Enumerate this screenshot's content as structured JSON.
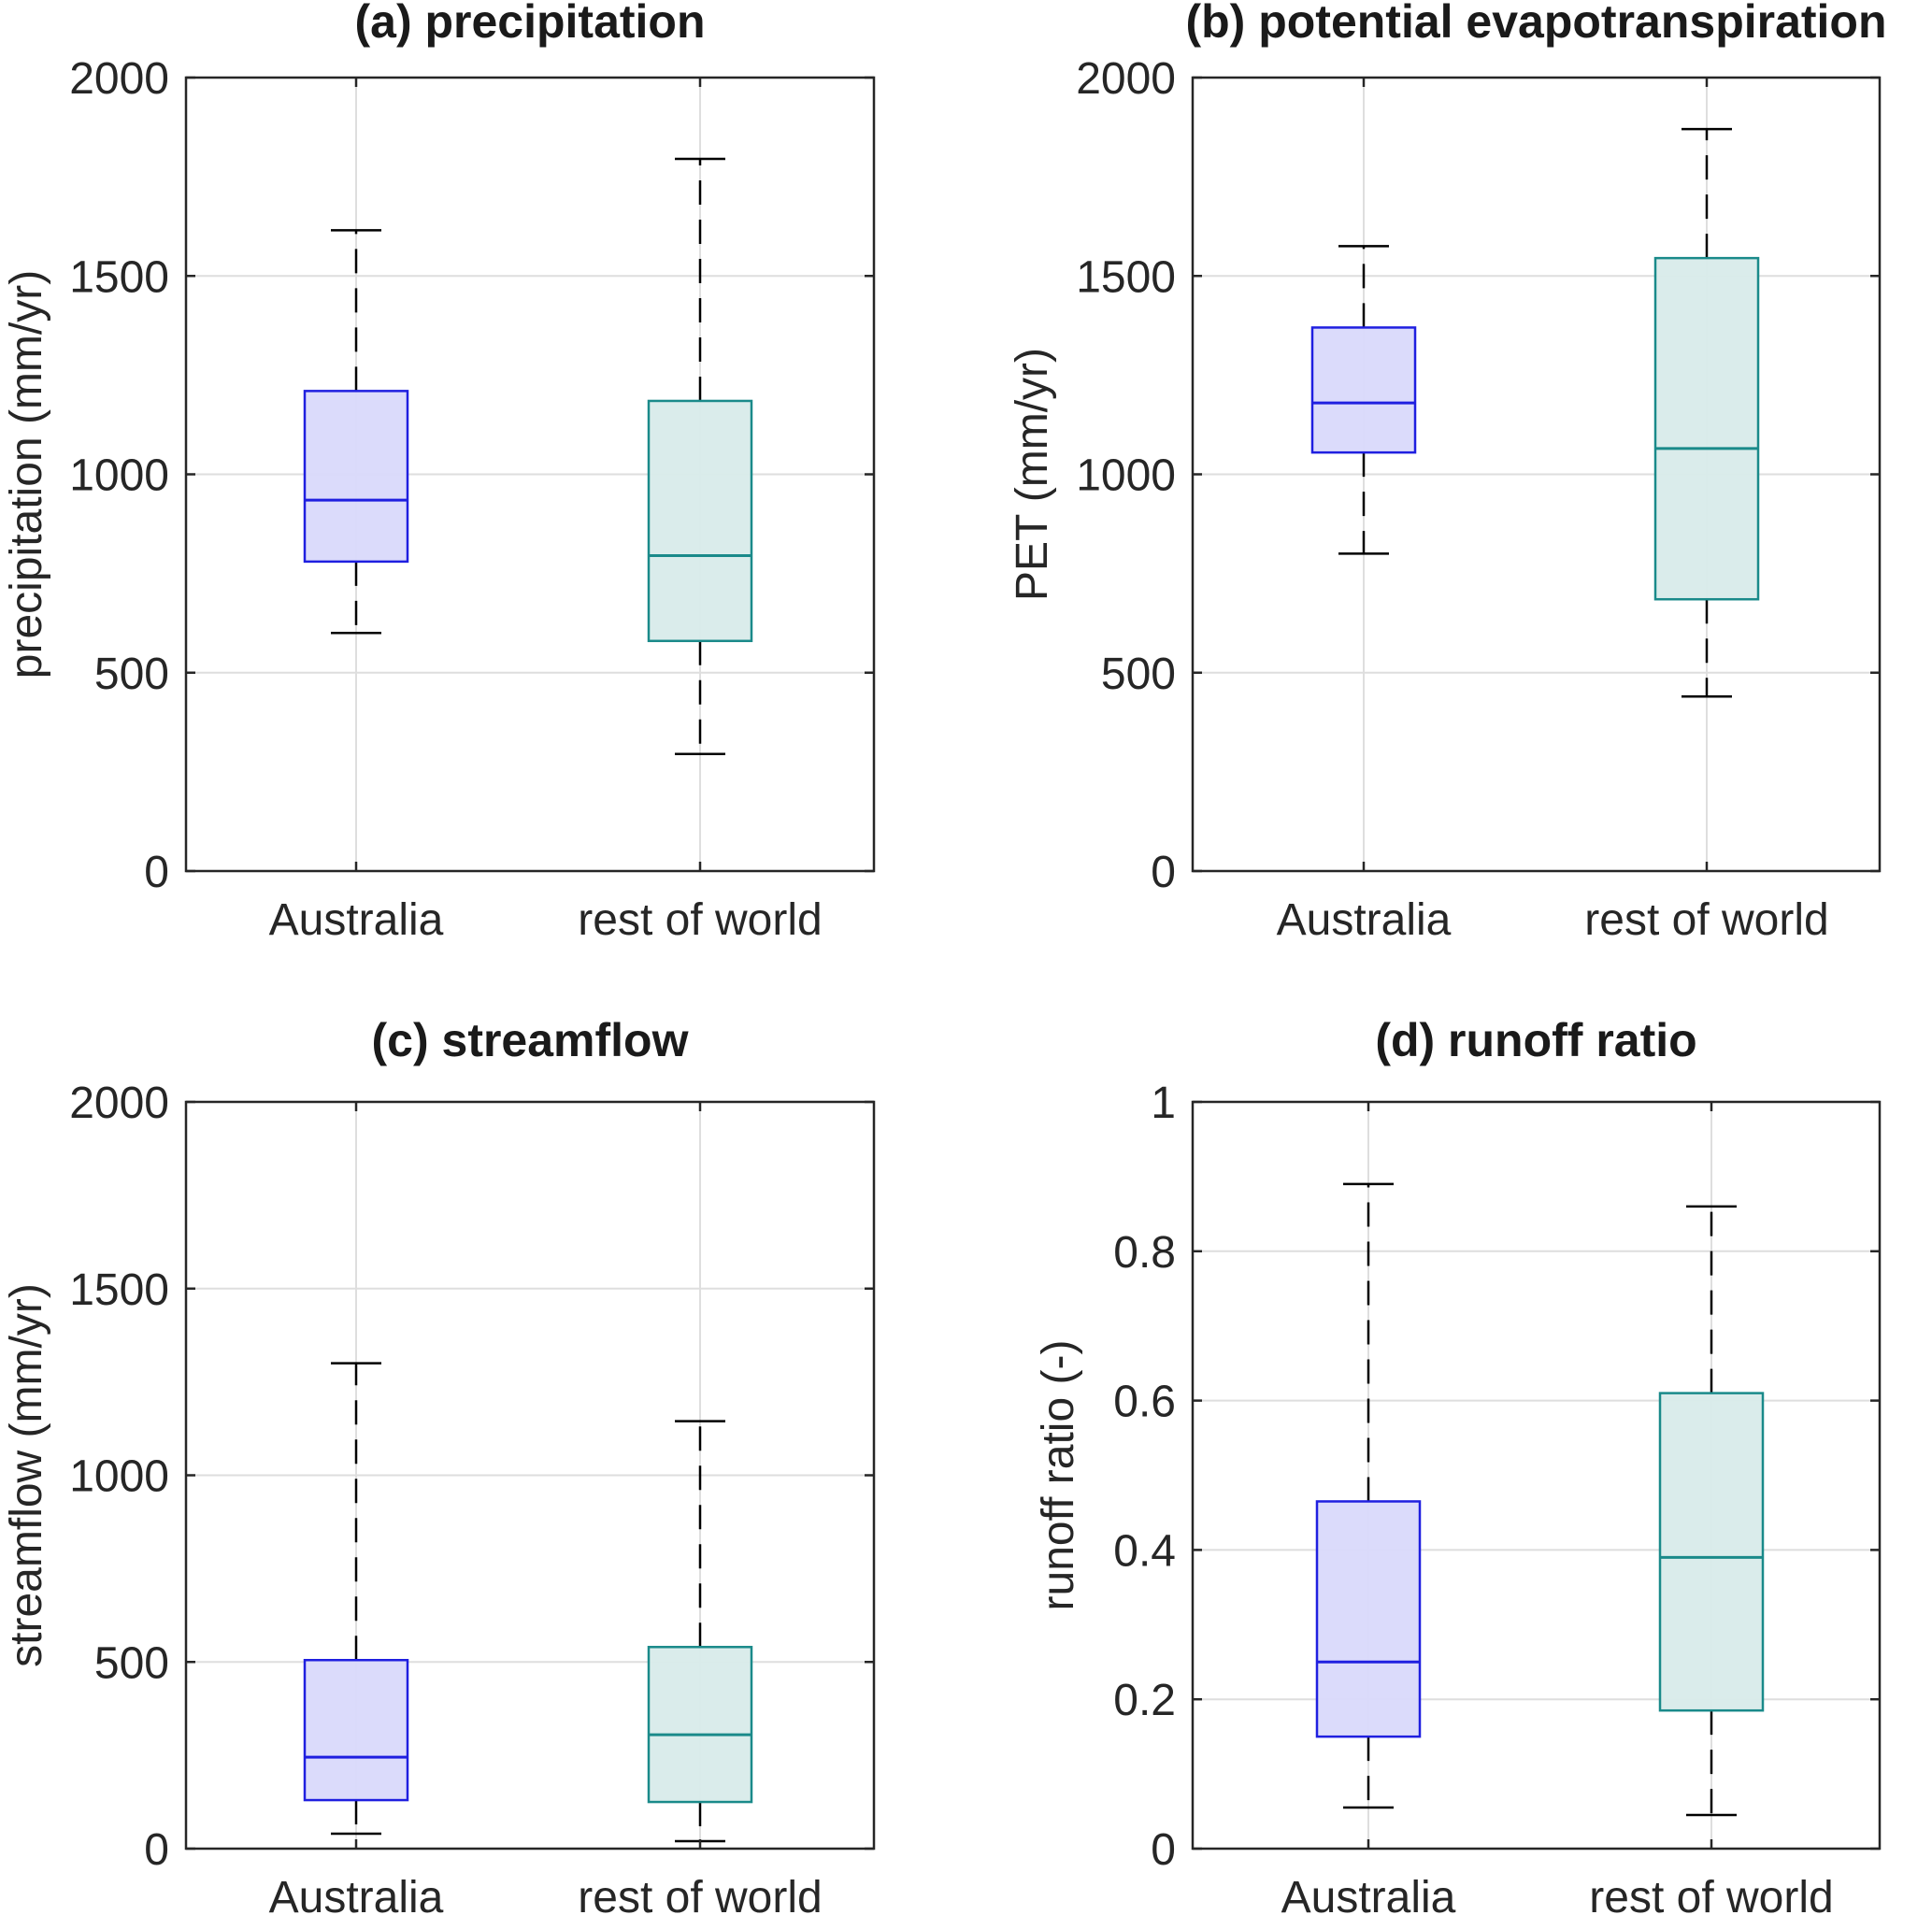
{
  "colors": {
    "australia_edge": "#1f1fe0",
    "australia_fill": "#d9d9fb",
    "world_edge": "#1a8a8a",
    "world_fill": "#d8ebea",
    "axis": "#262626",
    "grid": "#dedede",
    "whisker": "#000000"
  },
  "chart_data": [
    {
      "type": "box",
      "title": "(a) precipitation",
      "ylabel": "precipitation (mm/yr)",
      "xlabel": "",
      "ylim": [
        0,
        2000
      ],
      "yticks": [
        0,
        500,
        1000,
        1500,
        2000
      ],
      "ytick_labels": [
        "0",
        "500",
        "1000",
        "1500",
        "2000"
      ],
      "grid": true,
      "categories": [
        "Australia",
        "rest of world"
      ],
      "boxes": [
        {
          "whisker_low": 600,
          "q1": 780,
          "median": 935,
          "q3": 1210,
          "whisker_high": 1615
        },
        {
          "whisker_low": 295,
          "q1": 580,
          "median": 795,
          "q3": 1185,
          "whisker_high": 1795
        }
      ]
    },
    {
      "type": "box",
      "title": "(b) potential evapotranspiration",
      "ylabel": "PET (mm/yr)",
      "xlabel": "",
      "ylim": [
        0,
        2000
      ],
      "yticks": [
        0,
        500,
        1000,
        1500,
        2000
      ],
      "ytick_labels": [
        "0",
        "500",
        "1000",
        "1500",
        "2000"
      ],
      "grid": true,
      "categories": [
        "Australia",
        "rest of world"
      ],
      "boxes": [
        {
          "whisker_low": 800,
          "q1": 1055,
          "median": 1180,
          "q3": 1370,
          "whisker_high": 1575
        },
        {
          "whisker_low": 440,
          "q1": 685,
          "median": 1065,
          "q3": 1545,
          "whisker_high": 1870
        }
      ]
    },
    {
      "type": "box",
      "title": "(c) streamflow",
      "ylabel": "streamflow (mm/yr)",
      "xlabel": "",
      "ylim": [
        0,
        2000
      ],
      "yticks": [
        0,
        500,
        1000,
        1500,
        2000
      ],
      "ytick_labels": [
        "0",
        "500",
        "1000",
        "1500",
        "2000"
      ],
      "grid": true,
      "categories": [
        "Australia",
        "rest of world"
      ],
      "boxes": [
        {
          "whisker_low": 40,
          "q1": 130,
          "median": 245,
          "q3": 505,
          "whisker_high": 1300
        },
        {
          "whisker_low": 20,
          "q1": 125,
          "median": 305,
          "q3": 540,
          "whisker_high": 1145
        }
      ]
    },
    {
      "type": "box",
      "title": "(d) runoff ratio",
      "ylabel": "runoff ratio (-)",
      "xlabel": "",
      "ylim": [
        0,
        1
      ],
      "yticks": [
        0,
        0.2,
        0.4,
        0.6,
        0.8,
        1
      ],
      "ytick_labels": [
        "0",
        "0.2",
        "0.4",
        "0.6",
        "0.8",
        "1"
      ],
      "grid": true,
      "categories": [
        "Australia",
        "rest of world"
      ],
      "boxes": [
        {
          "whisker_low": 0.055,
          "q1": 0.15,
          "median": 0.25,
          "q3": 0.465,
          "whisker_high": 0.89
        },
        {
          "whisker_low": 0.045,
          "q1": 0.185,
          "median": 0.39,
          "q3": 0.61,
          "whisker_high": 0.86
        }
      ]
    }
  ]
}
